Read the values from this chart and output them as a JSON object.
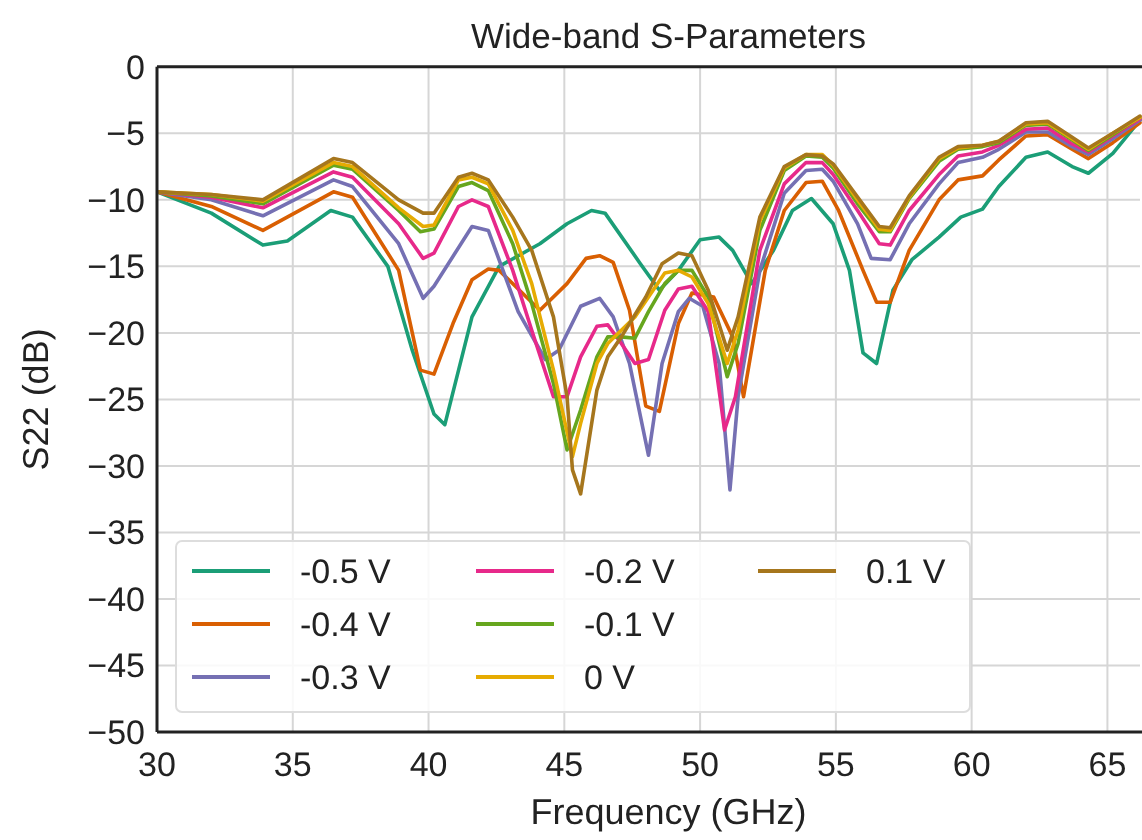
{
  "chart_data": {
    "type": "line",
    "title": "Wide-band S-Parameters",
    "xlabel": "Frequency (GHz)",
    "ylabel": "S22 (dB)",
    "xlim": [
      30,
      66.2
    ],
    "xticks": [
      30,
      35,
      40,
      45,
      50,
      55,
      60,
      65
    ],
    "ylim": [
      -50,
      0
    ],
    "yticks": [
      {
        "value": -50,
        "label": "−50"
      },
      {
        "value": -45,
        "label": "−45"
      },
      {
        "value": -40,
        "label": "−40"
      },
      {
        "value": -35,
        "label": "−35"
      },
      {
        "value": -30,
        "label": "−30"
      },
      {
        "value": -25,
        "label": "−25"
      },
      {
        "value": -20,
        "label": "−20"
      },
      {
        "value": -15,
        "label": "−15"
      },
      {
        "value": -10,
        "label": "−10"
      },
      {
        "value": -5,
        "label": "−5"
      },
      {
        "value": 0,
        "label": "0"
      }
    ],
    "grid": true,
    "legend": "bottom left",
    "line_style": "solid",
    "marker": "none",
    "series": [
      {
        "name": "-0.5 V",
        "color": "#1b9e77",
        "x": [
          30,
          32,
          33.9,
          34.8,
          36.4,
          37.2,
          38.5,
          39.4,
          40.2,
          40.6,
          41.6,
          42.6,
          44.1,
          45.1,
          46,
          46.5,
          47.8,
          48.5,
          49.2,
          50,
          50.7,
          51.2,
          51.9,
          52.7,
          53.4,
          54.1,
          54.9,
          55.5,
          56,
          56.5,
          57.1,
          57.8,
          58.8,
          59.6,
          60.4,
          61,
          62,
          62.8,
          63.7,
          64.3,
          65.2,
          66.2
        ],
        "values": [
          -9.4,
          -11,
          -13.4,
          -13.1,
          -10.8,
          -11.3,
          -15,
          -21.3,
          -26.1,
          -26.9,
          -18.8,
          -15,
          -13.3,
          -11.8,
          -10.8,
          -11,
          -14.8,
          -16.8,
          -15.3,
          -13,
          -12.8,
          -13.8,
          -16.3,
          -13.8,
          -10.8,
          -9.9,
          -11.8,
          -15.3,
          -21.5,
          -22.3,
          -16.8,
          -14.5,
          -12.8,
          -11.3,
          -10.7,
          -9,
          -6.8,
          -6.4,
          -7.5,
          -8,
          -6.5,
          -4
        ]
      },
      {
        "name": "-0.4 V",
        "color": "#d95f02",
        "x": [
          30,
          32,
          33.9,
          36.5,
          37.2,
          38.9,
          39.7,
          40.2,
          40.9,
          41.6,
          42.2,
          42.6,
          44.1,
          45.1,
          45.8,
          46.3,
          46.8,
          47.4,
          48,
          48.5,
          49.2,
          49.7,
          50.5,
          51.2,
          51.6,
          52.4,
          53.1,
          53.9,
          54.5,
          55.1,
          56,
          56.5,
          57,
          57.7,
          58.8,
          59.5,
          60.4,
          61,
          62,
          62.8,
          63.7,
          64.3,
          65.2,
          66.2
        ],
        "values": [
          -9.4,
          -10.5,
          -12.3,
          -9.4,
          -9.8,
          -15.3,
          -22.8,
          -23.1,
          -19.3,
          -16,
          -15.2,
          -15.3,
          -18.3,
          -16.3,
          -14.4,
          -14.2,
          -14.7,
          -18.3,
          -25.5,
          -25.9,
          -19.3,
          -17,
          -17.3,
          -20.3,
          -24.8,
          -15.3,
          -10.8,
          -8.7,
          -8.6,
          -10.8,
          -15.3,
          -17.7,
          -17.7,
          -13.8,
          -10,
          -8.5,
          -8.2,
          -7,
          -5.2,
          -5.1,
          -6.2,
          -6.9,
          -5.7,
          -4.2
        ]
      },
      {
        "name": "-0.3 V",
        "color": "#7570b3",
        "x": [
          30,
          32,
          33.9,
          36.5,
          37.2,
          38.9,
          39.8,
          40.2,
          41.6,
          42.2,
          43.3,
          44.3,
          44.8,
          45.6,
          46.3,
          46.8,
          47.4,
          48.1,
          48.6,
          49.2,
          49.6,
          50.1,
          50.7,
          51.1,
          51.4,
          52.2,
          53.1,
          53.9,
          54.5,
          54.9,
          55.8,
          56.3,
          57,
          57.7,
          58.8,
          59.5,
          60.4,
          61,
          62,
          62.8,
          63.7,
          64.3,
          65.2,
          66.2
        ],
        "values": [
          -9.4,
          -10,
          -11.2,
          -8.5,
          -9,
          -13.3,
          -17.4,
          -16.5,
          -12,
          -12.3,
          -18.4,
          -22,
          -21.3,
          -18,
          -17.4,
          -18.8,
          -22.3,
          -29.2,
          -22.3,
          -18.4,
          -17.4,
          -18,
          -22.3,
          -31.8,
          -24.8,
          -15.3,
          -9.5,
          -7.8,
          -7.7,
          -8.6,
          -11.8,
          -14.4,
          -14.5,
          -11.8,
          -8.8,
          -7.2,
          -6.8,
          -6.2,
          -4.9,
          -4.9,
          -6,
          -6.6,
          -5.4,
          -4
        ]
      },
      {
        "name": "-0.2 V",
        "color": "#e7298a",
        "x": [
          30,
          32,
          33.9,
          36.5,
          37.2,
          38.9,
          39.8,
          40.2,
          41.1,
          41.6,
          42.2,
          43.1,
          43.8,
          44.6,
          45.1,
          45.6,
          46.2,
          46.6,
          47.1,
          47.6,
          48.1,
          48.7,
          49.2,
          49.7,
          50.3,
          50.9,
          51.3,
          52.2,
          53.1,
          53.9,
          54.5,
          54.9,
          55.8,
          56.6,
          57,
          57.7,
          58.8,
          59.5,
          60.4,
          61,
          62,
          62.8,
          63.7,
          64.3,
          65.2,
          66.2
        ],
        "values": [
          -9.4,
          -9.8,
          -10.6,
          -7.9,
          -8.3,
          -11.8,
          -14.4,
          -14,
          -10.5,
          -10,
          -10.5,
          -15.3,
          -19.8,
          -24.8,
          -24.8,
          -21.8,
          -19.5,
          -19.4,
          -20.8,
          -22.3,
          -22,
          -18.3,
          -16.7,
          -16.5,
          -18.4,
          -27.3,
          -24.8,
          -13.8,
          -8.8,
          -7.2,
          -7.2,
          -8.1,
          -10.8,
          -13.3,
          -13.4,
          -10.8,
          -8.1,
          -6.7,
          -6.4,
          -5.9,
          -4.7,
          -4.6,
          -5.8,
          -6.4,
          -5.2,
          -3.9
        ]
      },
      {
        "name": "-0.1 V",
        "color": "#66a61e",
        "x": [
          30,
          32,
          33.9,
          36.5,
          37.2,
          38.9,
          39.7,
          40.2,
          41.1,
          41.6,
          42.2,
          43.1,
          43.8,
          44.6,
          45.1,
          45.6,
          46.2,
          46.6,
          47.1,
          47.6,
          48.1,
          48.7,
          49.2,
          49.7,
          50.3,
          51,
          51.4,
          52.2,
          53.1,
          53.9,
          54.5,
          54.9,
          55.8,
          56.6,
          57,
          57.7,
          58.8,
          59.5,
          60.4,
          61,
          62,
          62.8,
          63.7,
          64.3,
          65.2,
          66.2
        ],
        "values": [
          -9.4,
          -9.7,
          -10.3,
          -7.4,
          -7.7,
          -10.8,
          -12.4,
          -12.2,
          -9,
          -8.7,
          -9.3,
          -13.3,
          -17.8,
          -23.8,
          -28.8,
          -25.8,
          -21.8,
          -20.3,
          -20.3,
          -20.4,
          -18.4,
          -16.3,
          -15.3,
          -15.3,
          -17.3,
          -23.3,
          -20.8,
          -12.3,
          -7.8,
          -6.7,
          -6.8,
          -7.6,
          -10.3,
          -12.4,
          -12.4,
          -9.9,
          -7.1,
          -6.2,
          -6,
          -5.7,
          -4.4,
          -4.3,
          -5.5,
          -6.3,
          -5.1,
          -3.8
        ]
      },
      {
        "name": "0 V",
        "color": "#e6ab02",
        "x": [
          30,
          32,
          33.9,
          36.5,
          37.2,
          38.9,
          39.8,
          40.2,
          41.1,
          41.6,
          42.2,
          43.1,
          43.8,
          44.6,
          45.3,
          45.6,
          46.2,
          46.6,
          47.1,
          47.6,
          48.1,
          48.7,
          49.2,
          49.7,
          50.3,
          51,
          51.4,
          52.2,
          53.1,
          53.9,
          54.5,
          54.9,
          55.8,
          56.6,
          57,
          57.7,
          58.8,
          59.5,
          60.4,
          61,
          62,
          62.8,
          63.7,
          64.3,
          65.2,
          66.2
        ],
        "values": [
          -9.4,
          -9.6,
          -10.1,
          -7.2,
          -7.5,
          -10.6,
          -12,
          -11.9,
          -8.5,
          -8.3,
          -8.8,
          -12.3,
          -16.3,
          -22.8,
          -29.3,
          -26.8,
          -22.3,
          -20.8,
          -19.8,
          -18.8,
          -17.3,
          -15.5,
          -15.3,
          -15.8,
          -17.8,
          -22.3,
          -19.8,
          -11.6,
          -7.6,
          -6.6,
          -6.6,
          -7.4,
          -10,
          -12.2,
          -12.3,
          -9.8,
          -6.9,
          -6.1,
          -5.9,
          -5.6,
          -4.3,
          -4.2,
          -5.4,
          -6.2,
          -5,
          -3.8
        ]
      },
      {
        "name": "0.1 V",
        "color": "#a6761d",
        "x": [
          30,
          32,
          33.9,
          36.5,
          37.2,
          38.9,
          39.8,
          40.2,
          41.1,
          41.6,
          42.2,
          43.1,
          43.8,
          44.6,
          45.1,
          45.3,
          45.6,
          46.2,
          46.6,
          47.1,
          48,
          48.6,
          49.2,
          49.7,
          50.3,
          51,
          51.4,
          52.2,
          53.1,
          53.9,
          54.5,
          54.9,
          55.8,
          56.6,
          57,
          57.7,
          58.8,
          59.5,
          60.4,
          61,
          62,
          62.8,
          63.7,
          64.3,
          65.2,
          66.2
        ],
        "values": [
          -9.4,
          -9.6,
          -10,
          -6.9,
          -7.2,
          -10,
          -11,
          -11,
          -8.3,
          -8,
          -8.5,
          -11.3,
          -13.8,
          -18.8,
          -24.8,
          -30.3,
          -32.1,
          -24.3,
          -21.8,
          -20.3,
          -17.3,
          -14.8,
          -14,
          -14.2,
          -16.8,
          -21.3,
          -18.8,
          -11.3,
          -7.5,
          -6.6,
          -6.7,
          -7.3,
          -9.8,
          -12,
          -12.1,
          -9.7,
          -6.8,
          -6,
          -5.9,
          -5.6,
          -4.2,
          -4.1,
          -5.3,
          -6.1,
          -5,
          -3.7
        ]
      }
    ]
  }
}
